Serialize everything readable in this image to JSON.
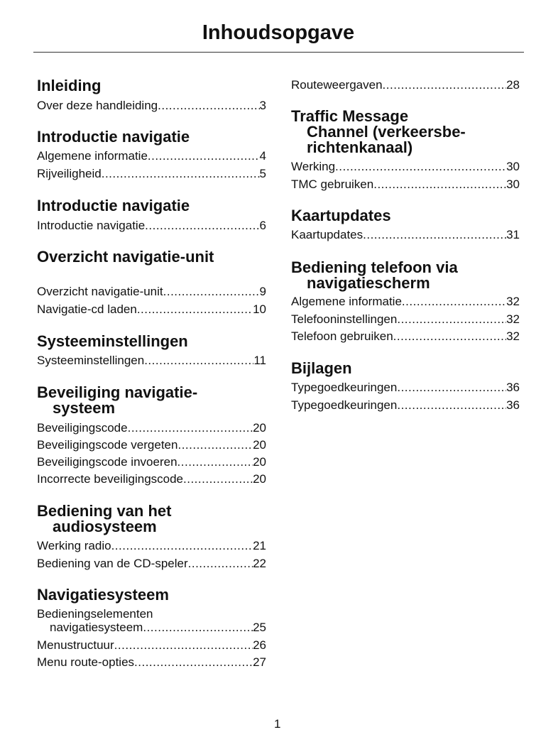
{
  "title": "Inhoudsopgave",
  "page_number": "1",
  "left": {
    "s1": {
      "heading": "Inleiding",
      "entries": [
        {
          "label": "Over deze handleiding",
          "page": "3"
        }
      ]
    },
    "s2": {
      "heading": "Introductie navigatie",
      "entries": [
        {
          "label": "Algemene informatie",
          "page": "4"
        },
        {
          "label": "Rijveiligheid",
          "page": "5"
        }
      ]
    },
    "s3": {
      "heading": "Introductie navigatie",
      "entries": [
        {
          "label": "Introductie navigatie",
          "page": "6"
        }
      ]
    },
    "s4": {
      "heading": "Overzicht navigatie-unit",
      "entries": [
        {
          "label": "Overzicht navigatie-unit",
          "page": "9"
        },
        {
          "label": "Navigatie-cd laden",
          "page": "10"
        }
      ]
    },
    "s5": {
      "heading": "Systeeminstellingen",
      "entries": [
        {
          "label": "Systeeminstellingen",
          "page": "11"
        }
      ]
    },
    "s6": {
      "heading_1": "Beveiliging navigatie-",
      "heading_2": "systeem",
      "entries": [
        {
          "label": "Beveiligingscode",
          "page": "20"
        },
        {
          "label": "Beveiligingscode vergeten",
          "page": "20"
        },
        {
          "label": "Beveiligingscode invoeren",
          "page": "20"
        },
        {
          "label": "Incorrecte beveiligingscode",
          "page": "20"
        }
      ]
    },
    "s7": {
      "heading_1": "Bediening van het",
      "heading_2": "audiosysteem",
      "entries": [
        {
          "label": "Werking radio",
          "page": "21"
        },
        {
          "label": "Bediening van de CD-speler",
          "page": "22"
        }
      ]
    },
    "s8": {
      "heading": "Navigatiesysteem",
      "entries": [
        {
          "label_1": "Bedieningselementen",
          "label": "navigatiesysteem",
          "page": "25"
        },
        {
          "label": "Menustructuur",
          "page": "26"
        },
        {
          "label": "Menu route-opties",
          "page": "27"
        }
      ]
    }
  },
  "right": {
    "s0": {
      "entries": [
        {
          "label": "Routeweergaven",
          "page": "28"
        }
      ]
    },
    "s1": {
      "heading_1": "Traffic Message",
      "heading_2": "Channel (verkeersbe-",
      "heading_3": "richtenkanaal)",
      "entries": [
        {
          "label": "Werking",
          "page": "30"
        },
        {
          "label": "TMC gebruiken",
          "page": "30"
        }
      ]
    },
    "s2": {
      "heading": "Kaartupdates",
      "entries": [
        {
          "label": "Kaartupdates",
          "page": "31"
        }
      ]
    },
    "s3": {
      "heading_1": "Bediening telefoon via",
      "heading_2": "navigatiescherm",
      "entries": [
        {
          "label": "Algemene informatie",
          "page": "32"
        },
        {
          "label": "Telefooninstellingen",
          "page": "32"
        },
        {
          "label": "Telefoon gebruiken",
          "page": "32"
        }
      ]
    },
    "s4": {
      "heading": "Bijlagen",
      "entries": [
        {
          "label": "Typegoedkeuringen",
          "page": "36"
        },
        {
          "label": "Typegoedkeuringen",
          "page": "36"
        }
      ]
    }
  }
}
